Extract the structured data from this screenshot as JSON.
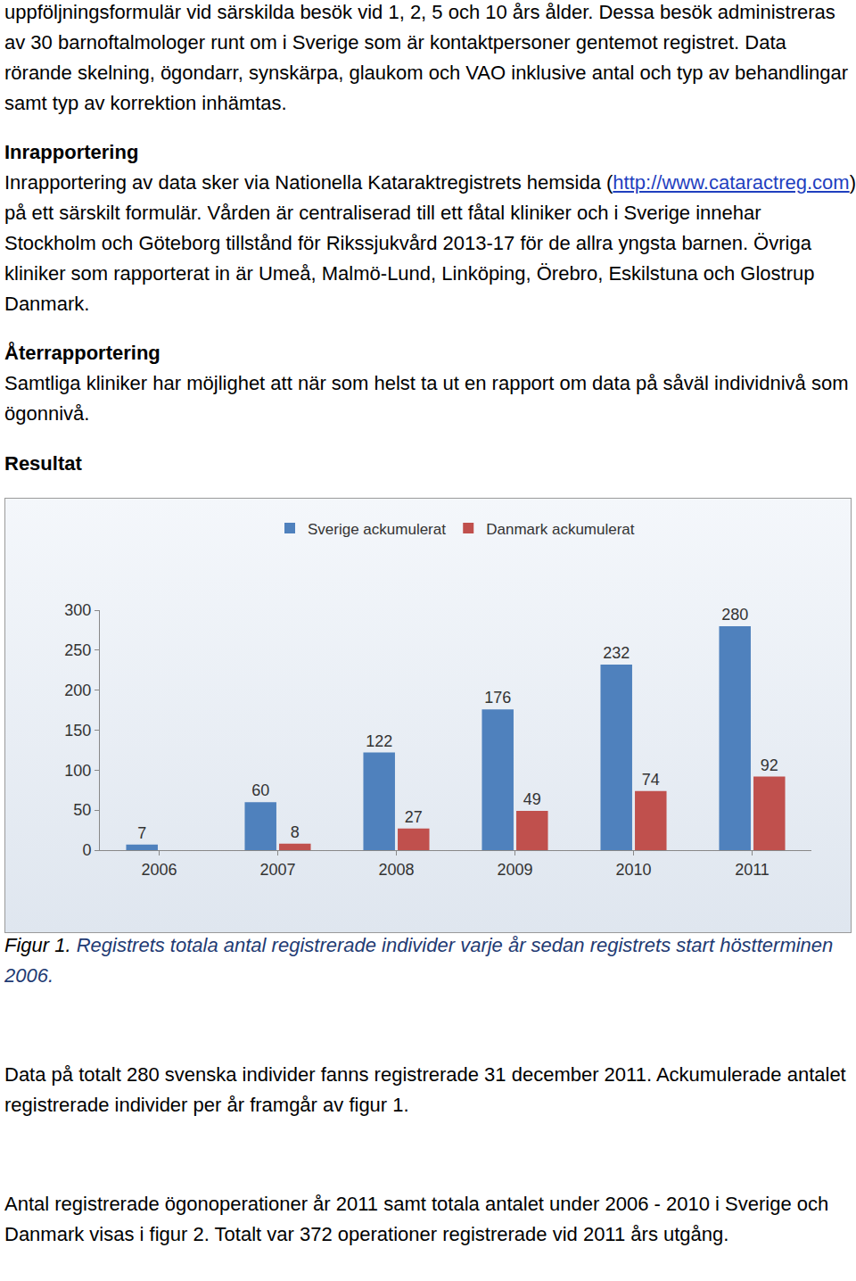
{
  "before": [
    {
      "kind": "p",
      "parts": [
        "uppföljningsformulär vid särskilda besök vid 1, 2, 5 och 10 års ålder. Dessa besök administreras av 30 barnoftalmologer runt om i Sverige som är kontaktpersoner gentemot registret. Data rörande skelning, ögondarr, synskärpa, glaukom och VAO inklusive antal och typ av behandlingar samt typ av korrektion inhämtas."
      ]
    },
    {
      "kind": "h",
      "parts": [
        "Inrapportering"
      ]
    },
    {
      "kind": "p",
      "parts": [
        "Inrapportering av data sker via Nationella Kataraktregistrets hemsida (",
        {
          "link": "http://www.cataractreg.com"
        },
        ") på ett särskilt formulär. Vården är centraliserad till ett fåtal kliniker och i Sverige innehar Stockholm och Göteborg tillstånd för Rikssjukvård 2013-17 för de allra yngsta barnen. Övriga kliniker som rapporterat in är Umeå, Malmö-Lund, Linköping, Örebro, Eskilstuna och Glostrup Danmark."
      ]
    },
    {
      "kind": "h",
      "parts": [
        "Återrapportering"
      ]
    },
    {
      "kind": "p",
      "parts": [
        "Samtliga kliniker har möjlighet att när som helst ta ut en rapport om data på såväl individnivå som ögonnivå."
      ]
    },
    {
      "kind": "h",
      "parts": [
        "Resultat"
      ]
    }
  ],
  "chart_data": {
    "type": "bar",
    "categories": [
      "2006",
      "2007",
      "2008",
      "2009",
      "2010",
      "2011"
    ],
    "series": [
      {
        "name": "Sverige ackumulerat",
        "color": "#4f81bd",
        "values": [
          7,
          60,
          122,
          176,
          232,
          280
        ]
      },
      {
        "name": "Danmark ackumulerat",
        "color": "#c0504d",
        "values": [
          null,
          8,
          27,
          49,
          74,
          92
        ]
      }
    ],
    "ylim": [
      0,
      300
    ],
    "yticks": [
      0,
      50,
      100,
      150,
      200,
      250,
      300
    ],
    "grid": false,
    "legend": "top",
    "data_labels": true
  },
  "caption": {
    "label": "Figur 1.",
    "text": "Registrets totala antal registrerade individer varje år sedan registrets start höstterminen 2006."
  },
  "after": [
    {
      "kind": "p",
      "parts": [
        "Data på totalt 280 svenska individer fanns registrerade 31 december 2011. Ackumulerade antalet registrerade individer per år framgår av figur 1."
      ]
    },
    {
      "kind": "p",
      "parts": [
        "Antal registrerade ögonoperationer år 2011 samt totala antalet under 2006 - 2010  i Sverige och Danmark visas i figur 2. Totalt var 372 operationer registrerade vid 2011 års utgång."
      ]
    }
  ]
}
